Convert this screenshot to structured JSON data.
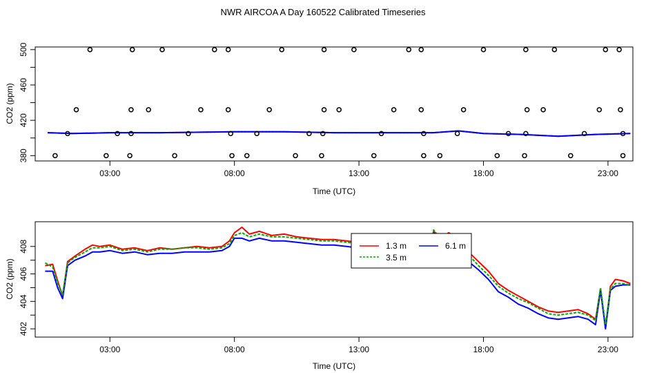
{
  "title": "NWR AIRCOA A  Day 160522  Calibrated Timeseries",
  "chart_data": [
    {
      "type": "scatter",
      "xlabel": "Time (UTC)",
      "ylabel": "CO2 (ppm)",
      "xlim": [
        0,
        24
      ],
      "ylim": [
        374,
        503
      ],
      "xticks": [
        3,
        8,
        13,
        18,
        23
      ],
      "xtick_labels": [
        "03:00",
        "08:00",
        "13:00",
        "18:00",
        "23:00"
      ],
      "yticks": [
        380,
        420,
        460,
        500
      ],
      "ytick_labels": [
        "380",
        "420",
        "460",
        "500"
      ],
      "lines": [
        {
          "name": "1.3 m",
          "color": "#ff0000",
          "x": [
            0.5,
            1.5,
            3,
            5,
            8,
            10,
            12,
            13.5,
            15,
            16,
            17,
            18,
            19.5,
            21,
            22.5,
            23.9
          ],
          "y": [
            406,
            405,
            406,
            406,
            407,
            407,
            406,
            406,
            406,
            406,
            408,
            405,
            404,
            402,
            404,
            405
          ]
        },
        {
          "name": "3.5 m",
          "color": "#00aa00",
          "x": [
            0.5,
            1.5,
            3,
            5,
            8,
            10,
            12,
            13.5,
            15,
            16,
            17,
            18,
            19.5,
            21,
            22.5,
            23.9
          ],
          "y": [
            406,
            405,
            406,
            406,
            407,
            407,
            406,
            406,
            406,
            406,
            408,
            405,
            404,
            402,
            404,
            405
          ]
        },
        {
          "name": "6.1 m",
          "color": "#0000ff",
          "x": [
            0.5,
            1.5,
            3,
            5,
            8,
            10,
            12,
            13.5,
            15,
            16,
            17,
            18,
            19.5,
            21,
            22.5,
            23.9
          ],
          "y": [
            406,
            405,
            406,
            406,
            407,
            407,
            406,
            406,
            406,
            406,
            408,
            405,
            404,
            402,
            404,
            405
          ]
        }
      ],
      "points": [
        {
          "x": 2.2,
          "y": 500
        },
        {
          "x": 3.9,
          "y": 500
        },
        {
          "x": 5.1,
          "y": 500
        },
        {
          "x": 7.2,
          "y": 500
        },
        {
          "x": 7.75,
          "y": 500
        },
        {
          "x": 9.9,
          "y": 500
        },
        {
          "x": 11.6,
          "y": 500
        },
        {
          "x": 12.8,
          "y": 500
        },
        {
          "x": 15.0,
          "y": 500
        },
        {
          "x": 15.5,
          "y": 500
        },
        {
          "x": 18.0,
          "y": 500
        },
        {
          "x": 19.7,
          "y": 500
        },
        {
          "x": 20.85,
          "y": 500
        },
        {
          "x": 22.9,
          "y": 500
        },
        {
          "x": 23.45,
          "y": 500
        },
        {
          "x": 1.65,
          "y": 432
        },
        {
          "x": 3.85,
          "y": 432
        },
        {
          "x": 4.55,
          "y": 432
        },
        {
          "x": 6.65,
          "y": 432
        },
        {
          "x": 7.75,
          "y": 432
        },
        {
          "x": 9.4,
          "y": 432
        },
        {
          "x": 11.6,
          "y": 432
        },
        {
          "x": 12.2,
          "y": 432
        },
        {
          "x": 14.4,
          "y": 432
        },
        {
          "x": 15.5,
          "y": 432
        },
        {
          "x": 17.2,
          "y": 432
        },
        {
          "x": 19.75,
          "y": 432
        },
        {
          "x": 20.4,
          "y": 432
        },
        {
          "x": 22.65,
          "y": 432
        },
        {
          "x": 23.5,
          "y": 432
        },
        {
          "x": 1.3,
          "y": 405
        },
        {
          "x": 3.3,
          "y": 405
        },
        {
          "x": 3.85,
          "y": 405
        },
        {
          "x": 6.15,
          "y": 405
        },
        {
          "x": 7.85,
          "y": 405
        },
        {
          "x": 8.9,
          "y": 405
        },
        {
          "x": 11.0,
          "y": 405
        },
        {
          "x": 11.55,
          "y": 405
        },
        {
          "x": 13.9,
          "y": 405
        },
        {
          "x": 15.6,
          "y": 405
        },
        {
          "x": 16.95,
          "y": 405
        },
        {
          "x": 19.0,
          "y": 405
        },
        {
          "x": 19.7,
          "y": 405
        },
        {
          "x": 22.05,
          "y": 405
        },
        {
          "x": 23.6,
          "y": 405
        },
        {
          "x": 0.8,
          "y": 380
        },
        {
          "x": 2.85,
          "y": 380
        },
        {
          "x": 3.8,
          "y": 380
        },
        {
          "x": 5.6,
          "y": 380
        },
        {
          "x": 7.9,
          "y": 380
        },
        {
          "x": 8.5,
          "y": 380
        },
        {
          "x": 10.45,
          "y": 380
        },
        {
          "x": 11.5,
          "y": 380
        },
        {
          "x": 13.6,
          "y": 380
        },
        {
          "x": 15.6,
          "y": 380
        },
        {
          "x": 16.25,
          "y": 380
        },
        {
          "x": 18.55,
          "y": 380
        },
        {
          "x": 19.65,
          "y": 380
        },
        {
          "x": 21.5,
          "y": 380
        },
        {
          "x": 23.6,
          "y": 380
        }
      ]
    },
    {
      "type": "line",
      "xlabel": "Time (UTC)",
      "ylabel": "CO2 (ppm)",
      "xlim": [
        0,
        24
      ],
      "ylim": [
        401.4,
        409.8
      ],
      "xticks": [
        3,
        8,
        13,
        18,
        23
      ],
      "xtick_labels": [
        "03:00",
        "08:00",
        "13:00",
        "18:00",
        "23:00"
      ],
      "yticks": [
        402,
        404,
        406,
        408
      ],
      "ytick_labels": [
        "402",
        "404",
        "406",
        "408"
      ],
      "legend": {
        "position": "center-right",
        "entries": [
          "1.3 m",
          "3.5 m",
          "6.1 m"
        ]
      },
      "series": [
        {
          "name": "1.3 m",
          "color": "#ff0000",
          "x": [
            0.4,
            0.7,
            0.9,
            1.1,
            1.3,
            1.6,
            2.0,
            2.3,
            2.6,
            3.0,
            3.5,
            4.0,
            4.5,
            5.0,
            5.5,
            6.0,
            6.5,
            7.0,
            7.5,
            7.8,
            8.0,
            8.3,
            8.6,
            9.0,
            9.5,
            10.0,
            10.5,
            11.0,
            11.5,
            12.0,
            12.5,
            13.0,
            13.5,
            14.0,
            14.5,
            15.0,
            15.5,
            15.8,
            16.0,
            16.3,
            16.6,
            17.0,
            17.4,
            17.8,
            18.2,
            18.6,
            19.0,
            19.4,
            19.8,
            20.2,
            20.6,
            21.0,
            21.4,
            21.8,
            22.2,
            22.5,
            22.7,
            22.9,
            23.1,
            23.3,
            23.6,
            23.9
          ],
          "y": [
            406.6,
            406.7,
            405.5,
            404.4,
            406.9,
            407.3,
            407.8,
            408.1,
            408.0,
            408.1,
            407.8,
            407.9,
            407.7,
            407.9,
            407.8,
            407.9,
            408.0,
            407.9,
            408.0,
            408.4,
            409.0,
            409.4,
            408.9,
            409.1,
            408.8,
            408.9,
            408.7,
            408.6,
            408.5,
            408.5,
            408.4,
            408.3,
            408.2,
            408.1,
            408.0,
            407.9,
            407.6,
            407.4,
            409.1,
            408.6,
            409.0,
            408.6,
            407.6,
            406.9,
            406.2,
            405.3,
            404.8,
            404.4,
            404.0,
            403.6,
            403.3,
            403.2,
            403.3,
            403.4,
            403.1,
            402.7,
            404.9,
            402.1,
            405.1,
            405.6,
            405.5,
            405.3
          ]
        },
        {
          "name": "3.5 m",
          "color": "#00aa00",
          "x": [
            0.4,
            0.7,
            0.9,
            1.1,
            1.3,
            1.6,
            2.0,
            2.3,
            2.6,
            3.0,
            3.5,
            4.0,
            4.5,
            5.0,
            5.5,
            6.0,
            6.5,
            7.0,
            7.5,
            7.8,
            8.0,
            8.3,
            8.6,
            9.0,
            9.5,
            10.0,
            10.5,
            11.0,
            11.5,
            12.0,
            12.5,
            13.0,
            13.5,
            14.0,
            14.5,
            15.0,
            15.5,
            15.8,
            16.0,
            16.3,
            16.6,
            17.0,
            17.4,
            17.8,
            18.2,
            18.6,
            19.0,
            19.4,
            19.8,
            20.2,
            20.6,
            21.0,
            21.4,
            21.8,
            22.2,
            22.5,
            22.7,
            22.9,
            23.1,
            23.3,
            23.6,
            23.9
          ],
          "y": [
            406.8,
            406.5,
            405.3,
            404.5,
            406.8,
            407.2,
            407.6,
            407.9,
            407.9,
            408.0,
            407.7,
            407.8,
            407.6,
            407.8,
            407.8,
            407.9,
            407.9,
            407.8,
            407.9,
            408.2,
            408.8,
            409.0,
            408.7,
            408.9,
            408.7,
            408.7,
            408.6,
            408.5,
            408.4,
            408.4,
            408.3,
            408.2,
            408.1,
            408.0,
            407.9,
            407.8,
            407.5,
            407.3,
            409.2,
            408.5,
            408.9,
            408.5,
            407.4,
            406.6,
            405.9,
            405.1,
            404.6,
            404.2,
            403.9,
            403.5,
            403.1,
            403.0,
            403.1,
            403.2,
            403.0,
            402.6,
            405.0,
            402.3,
            404.9,
            405.3,
            405.3,
            405.2
          ]
        },
        {
          "name": "6.1 m",
          "color": "#0000ff",
          "x": [
            0.4,
            0.7,
            0.9,
            1.1,
            1.3,
            1.6,
            2.0,
            2.3,
            2.6,
            3.0,
            3.5,
            4.0,
            4.5,
            5.0,
            5.5,
            6.0,
            6.5,
            7.0,
            7.5,
            7.8,
            8.0,
            8.3,
            8.6,
            9.0,
            9.5,
            10.0,
            10.5,
            11.0,
            11.5,
            12.0,
            12.5,
            13.0,
            13.5,
            14.0,
            14.5,
            15.0,
            15.5,
            15.8,
            16.0,
            16.3,
            16.6,
            17.0,
            17.4,
            17.8,
            18.2,
            18.6,
            19.0,
            19.4,
            19.8,
            20.2,
            20.6,
            21.0,
            21.4,
            21.8,
            22.2,
            22.5,
            22.7,
            22.9,
            23.1,
            23.3,
            23.6,
            23.9
          ],
          "y": [
            406.2,
            406.2,
            405.0,
            404.2,
            406.6,
            407.0,
            407.3,
            407.6,
            407.6,
            407.7,
            407.5,
            407.6,
            407.4,
            407.5,
            407.5,
            407.6,
            407.6,
            407.6,
            407.7,
            408.0,
            408.6,
            408.6,
            408.4,
            408.6,
            408.4,
            408.4,
            408.3,
            408.2,
            408.1,
            408.1,
            408.0,
            407.9,
            407.8,
            407.7,
            407.6,
            407.5,
            407.2,
            407.1,
            409.0,
            408.2,
            408.6,
            408.2,
            406.9,
            406.3,
            405.6,
            404.7,
            404.3,
            403.8,
            403.5,
            403.1,
            402.8,
            402.7,
            402.8,
            402.9,
            402.7,
            402.3,
            404.8,
            402.0,
            404.8,
            405.1,
            405.2,
            405.2
          ]
        }
      ]
    }
  ]
}
